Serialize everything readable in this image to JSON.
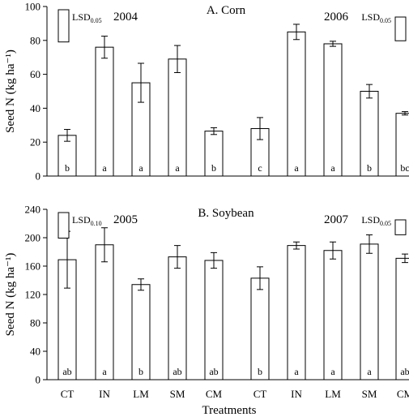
{
  "chart_data": [
    {
      "type": "bar",
      "title": "A. Corn",
      "ylabel": "Seed N (kg ha⁻¹)",
      "ylim": [
        0,
        100
      ],
      "yticks": [
        "0",
        "20",
        "40",
        "60",
        "80",
        "100"
      ],
      "categories": [
        "CT",
        "IN",
        "LM",
        "SM",
        "CM"
      ],
      "groups": [
        {
          "year": "2004",
          "lsd": {
            "label": "LSD",
            "subscript": "0.05",
            "value": 19,
            "position": "left"
          },
          "values": [
            24,
            76,
            55,
            69,
            26.5
          ],
          "errors": [
            3.5,
            6.5,
            11.5,
            8,
            2
          ],
          "letters": [
            "b",
            "a",
            "a",
            "a",
            "b"
          ]
        },
        {
          "year": "2006",
          "lsd": {
            "label": "LSD",
            "subscript": "0.05",
            "value": 14,
            "position": "right"
          },
          "values": [
            28,
            85,
            78,
            50,
            37
          ],
          "errors": [
            6.5,
            4.5,
            1.5,
            4,
            1
          ],
          "letters": [
            "c",
            "a",
            "a",
            "b",
            "bc"
          ]
        }
      ]
    },
    {
      "type": "bar",
      "title": "B. Soybean",
      "xlabel": "Treatments",
      "ylabel": "Seed N (kg ha⁻¹)",
      "ylim": [
        0,
        240
      ],
      "yticks": [
        "0",
        "40",
        "80",
        "120",
        "160",
        "200",
        "240"
      ],
      "categories": [
        "CT",
        "IN",
        "LM",
        "SM",
        "CM"
      ],
      "groups": [
        {
          "year": "2005",
          "lsd": {
            "label": "LSD",
            "subscript": "0.10",
            "value": 36,
            "position": "left"
          },
          "values": [
            169,
            190,
            134,
            173,
            168
          ],
          "errors": [
            40,
            24,
            8,
            16,
            11
          ],
          "letters": [
            "ab",
            "a",
            "b",
            "ab",
            "ab"
          ]
        },
        {
          "year": "2007",
          "lsd": {
            "label": "LSD",
            "subscript": "0.05",
            "value": 21,
            "position": "right"
          },
          "values": [
            143,
            189,
            182,
            191,
            171
          ],
          "errors": [
            16,
            5,
            12,
            13,
            6
          ],
          "letters": [
            "b",
            "a",
            "a",
            "a",
            "ab"
          ]
        }
      ]
    }
  ]
}
